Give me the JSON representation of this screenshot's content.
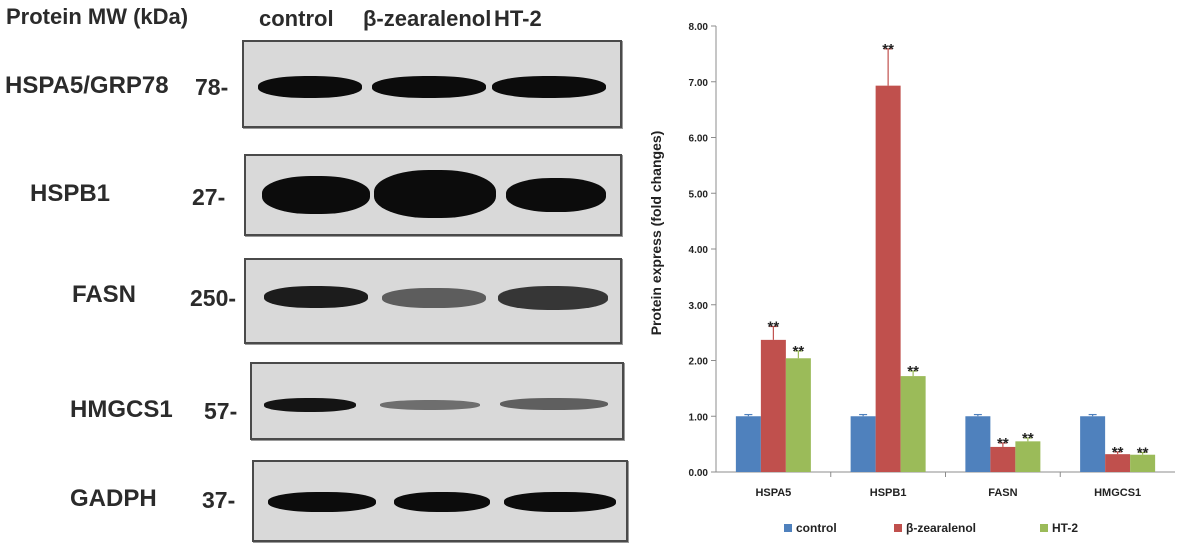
{
  "blot_panel": {
    "mw_header": "Protein MW (kDa)",
    "lanes": [
      "control",
      "β-zearalenol",
      "HT-2"
    ],
    "rows": [
      {
        "protein": "HSPA5/GRP78",
        "mw": "78-",
        "intensity": [
          0.9,
          0.92,
          0.92
        ]
      },
      {
        "protein": "HSPB1",
        "mw": "27-",
        "intensity": [
          0.95,
          1.0,
          0.9
        ]
      },
      {
        "protein": "FASN",
        "mw": "250-",
        "intensity": [
          0.85,
          0.55,
          0.7
        ]
      },
      {
        "protein": "HMGCS1",
        "mw": "57-",
        "intensity": [
          0.85,
          0.45,
          0.5
        ]
      },
      {
        "protein": "GADPH",
        "mw": "37-",
        "intensity": [
          0.9,
          0.9,
          0.9
        ]
      }
    ]
  },
  "chart_data": {
    "type": "bar",
    "title": "",
    "xlabel": "",
    "ylabel": "Protein express (fold changes)",
    "ylim": [
      0,
      8
    ],
    "yticks": [
      "0.00",
      "1.00",
      "2.00",
      "3.00",
      "4.00",
      "5.00",
      "6.00",
      "7.00",
      "8.00"
    ],
    "categories": [
      "HSPA5",
      "HSPB1",
      "FASN",
      "HMGCS1"
    ],
    "series": [
      {
        "name": "control",
        "color": "#4f81bd",
        "values": [
          1.0,
          1.0,
          1.0,
          1.0
        ],
        "errors": [
          0.03,
          0.03,
          0.03,
          0.03
        ],
        "marks": [
          "",
          "",
          "",
          ""
        ]
      },
      {
        "name": "β-zearalenol",
        "color": "#c0504d",
        "values": [
          2.37,
          6.93,
          0.45,
          0.32
        ],
        "errors": [
          0.24,
          0.66,
          0.07,
          0.04
        ],
        "marks": [
          "**",
          "**",
          "**",
          "**"
        ]
      },
      {
        "name": "HT-2",
        "color": "#9bbb59",
        "values": [
          2.04,
          1.72,
          0.55,
          0.31
        ],
        "errors": [
          0.13,
          0.09,
          0.06,
          0.04
        ],
        "marks": [
          "**",
          "**",
          "**",
          "**"
        ]
      }
    ],
    "grid": false,
    "legend_position": "bottom"
  }
}
